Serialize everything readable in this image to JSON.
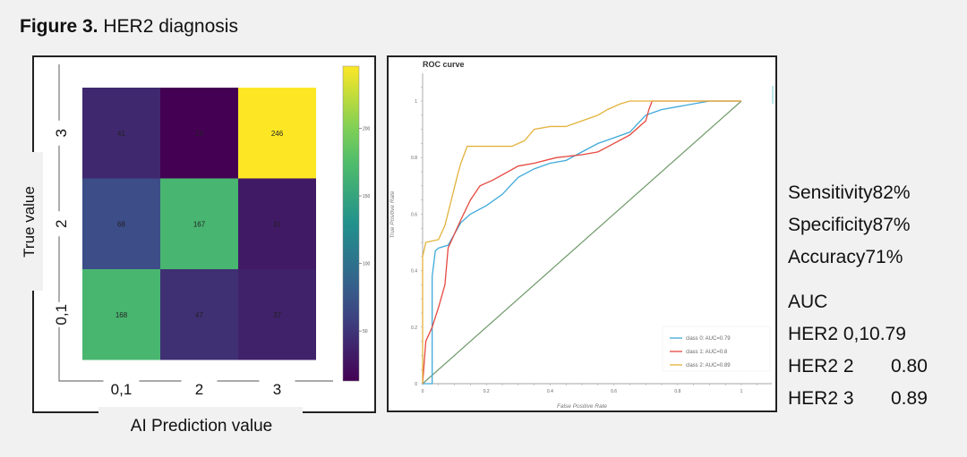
{
  "figure": {
    "label": "Figure 3.",
    "title": "HER2 diagnosis"
  },
  "chart_data": [
    {
      "type": "heatmap",
      "title": "",
      "xlabel": "AI Prediction value",
      "ylabel": "True value",
      "x_categories": [
        "0,1",
        "2",
        "3"
      ],
      "y_categories": [
        "3",
        "2",
        "0,1"
      ],
      "values": [
        [
          41,
          13,
          246
        ],
        [
          68,
          167,
          31
        ],
        [
          168,
          47,
          37
        ]
      ],
      "colormap": "viridis",
      "colorbar": {
        "range": [
          13,
          246
        ],
        "ticks": [
          50,
          100,
          150,
          200
        ]
      }
    },
    {
      "type": "line",
      "title": "ROC curve",
      "xlabel": "False Positive Rate",
      "ylabel": "True Positive Rate",
      "xlim": [
        0,
        1
      ],
      "ylim": [
        0,
        1
      ],
      "xticks": [
        "0",
        "0.2",
        "0.4",
        "0.6",
        "0.8",
        "1"
      ],
      "yticks": [
        "0",
        "0.2",
        "0.4",
        "0.6",
        "0.8",
        "1"
      ],
      "legend_position": "bottom-right",
      "series": [
        {
          "name": "class 0: AUC=0.79",
          "color": "#3fa9d9",
          "points": [
            [
              0,
              0
            ],
            [
              0.03,
              0
            ],
            [
              0.03,
              0.38
            ],
            [
              0.04,
              0.47
            ],
            [
              0.05,
              0.48
            ],
            [
              0.08,
              0.49
            ],
            [
              0.1,
              0.53
            ],
            [
              0.12,
              0.57
            ],
            [
              0.15,
              0.6
            ],
            [
              0.2,
              0.63
            ],
            [
              0.25,
              0.67
            ],
            [
              0.3,
              0.73
            ],
            [
              0.35,
              0.76
            ],
            [
              0.4,
              0.78
            ],
            [
              0.45,
              0.79
            ],
            [
              0.5,
              0.82
            ],
            [
              0.55,
              0.85
            ],
            [
              0.6,
              0.87
            ],
            [
              0.65,
              0.89
            ],
            [
              0.7,
              0.95
            ],
            [
              0.75,
              0.97
            ],
            [
              0.8,
              0.98
            ],
            [
              0.85,
              0.99
            ],
            [
              0.9,
              1
            ],
            [
              1,
              1
            ]
          ]
        },
        {
          "name": "class 1: AUC=0.8",
          "color": "#e5483f",
          "points": [
            [
              0,
              0
            ],
            [
              0.01,
              0.15
            ],
            [
              0.03,
              0.2
            ],
            [
              0.05,
              0.27
            ],
            [
              0.07,
              0.35
            ],
            [
              0.08,
              0.48
            ],
            [
              0.1,
              0.53
            ],
            [
              0.12,
              0.58
            ],
            [
              0.15,
              0.65
            ],
            [
              0.18,
              0.7
            ],
            [
              0.22,
              0.72
            ],
            [
              0.3,
              0.77
            ],
            [
              0.35,
              0.78
            ],
            [
              0.42,
              0.8
            ],
            [
              0.5,
              0.81
            ],
            [
              0.55,
              0.82
            ],
            [
              0.6,
              0.85
            ],
            [
              0.65,
              0.88
            ],
            [
              0.7,
              0.93
            ],
            [
              0.71,
              0.97
            ],
            [
              0.72,
              1
            ],
            [
              1,
              1
            ]
          ]
        },
        {
          "name": "class 2: AUC=0.89",
          "color": "#e3b23c",
          "points": [
            [
              0,
              0
            ],
            [
              0,
              0.45
            ],
            [
              0.01,
              0.5
            ],
            [
              0.05,
              0.51
            ],
            [
              0.07,
              0.56
            ],
            [
              0.09,
              0.65
            ],
            [
              0.11,
              0.74
            ],
            [
              0.12,
              0.78
            ],
            [
              0.14,
              0.84
            ],
            [
              0.2,
              0.84
            ],
            [
              0.28,
              0.84
            ],
            [
              0.32,
              0.86
            ],
            [
              0.35,
              0.9
            ],
            [
              0.4,
              0.91
            ],
            [
              0.45,
              0.91
            ],
            [
              0.5,
              0.93
            ],
            [
              0.55,
              0.95
            ],
            [
              0.58,
              0.97
            ],
            [
              0.62,
              0.99
            ],
            [
              0.65,
              1
            ],
            [
              1,
              1
            ]
          ]
        }
      ],
      "diagonal_color": "#6f9a6a"
    }
  ],
  "stats": [
    {
      "label": "Sensitivity",
      "value": "82%"
    },
    {
      "label": "Specificity",
      "value": "87%"
    },
    {
      "label": "Accuracy",
      "value": "71%"
    }
  ],
  "auc": {
    "heading": "AUC",
    "rows": [
      {
        "label": "HER2 0,1",
        "value": "0.79"
      },
      {
        "label": "HER2 2",
        "value": "0.80"
      },
      {
        "label": "HER2 3",
        "value": "0.89"
      }
    ]
  }
}
